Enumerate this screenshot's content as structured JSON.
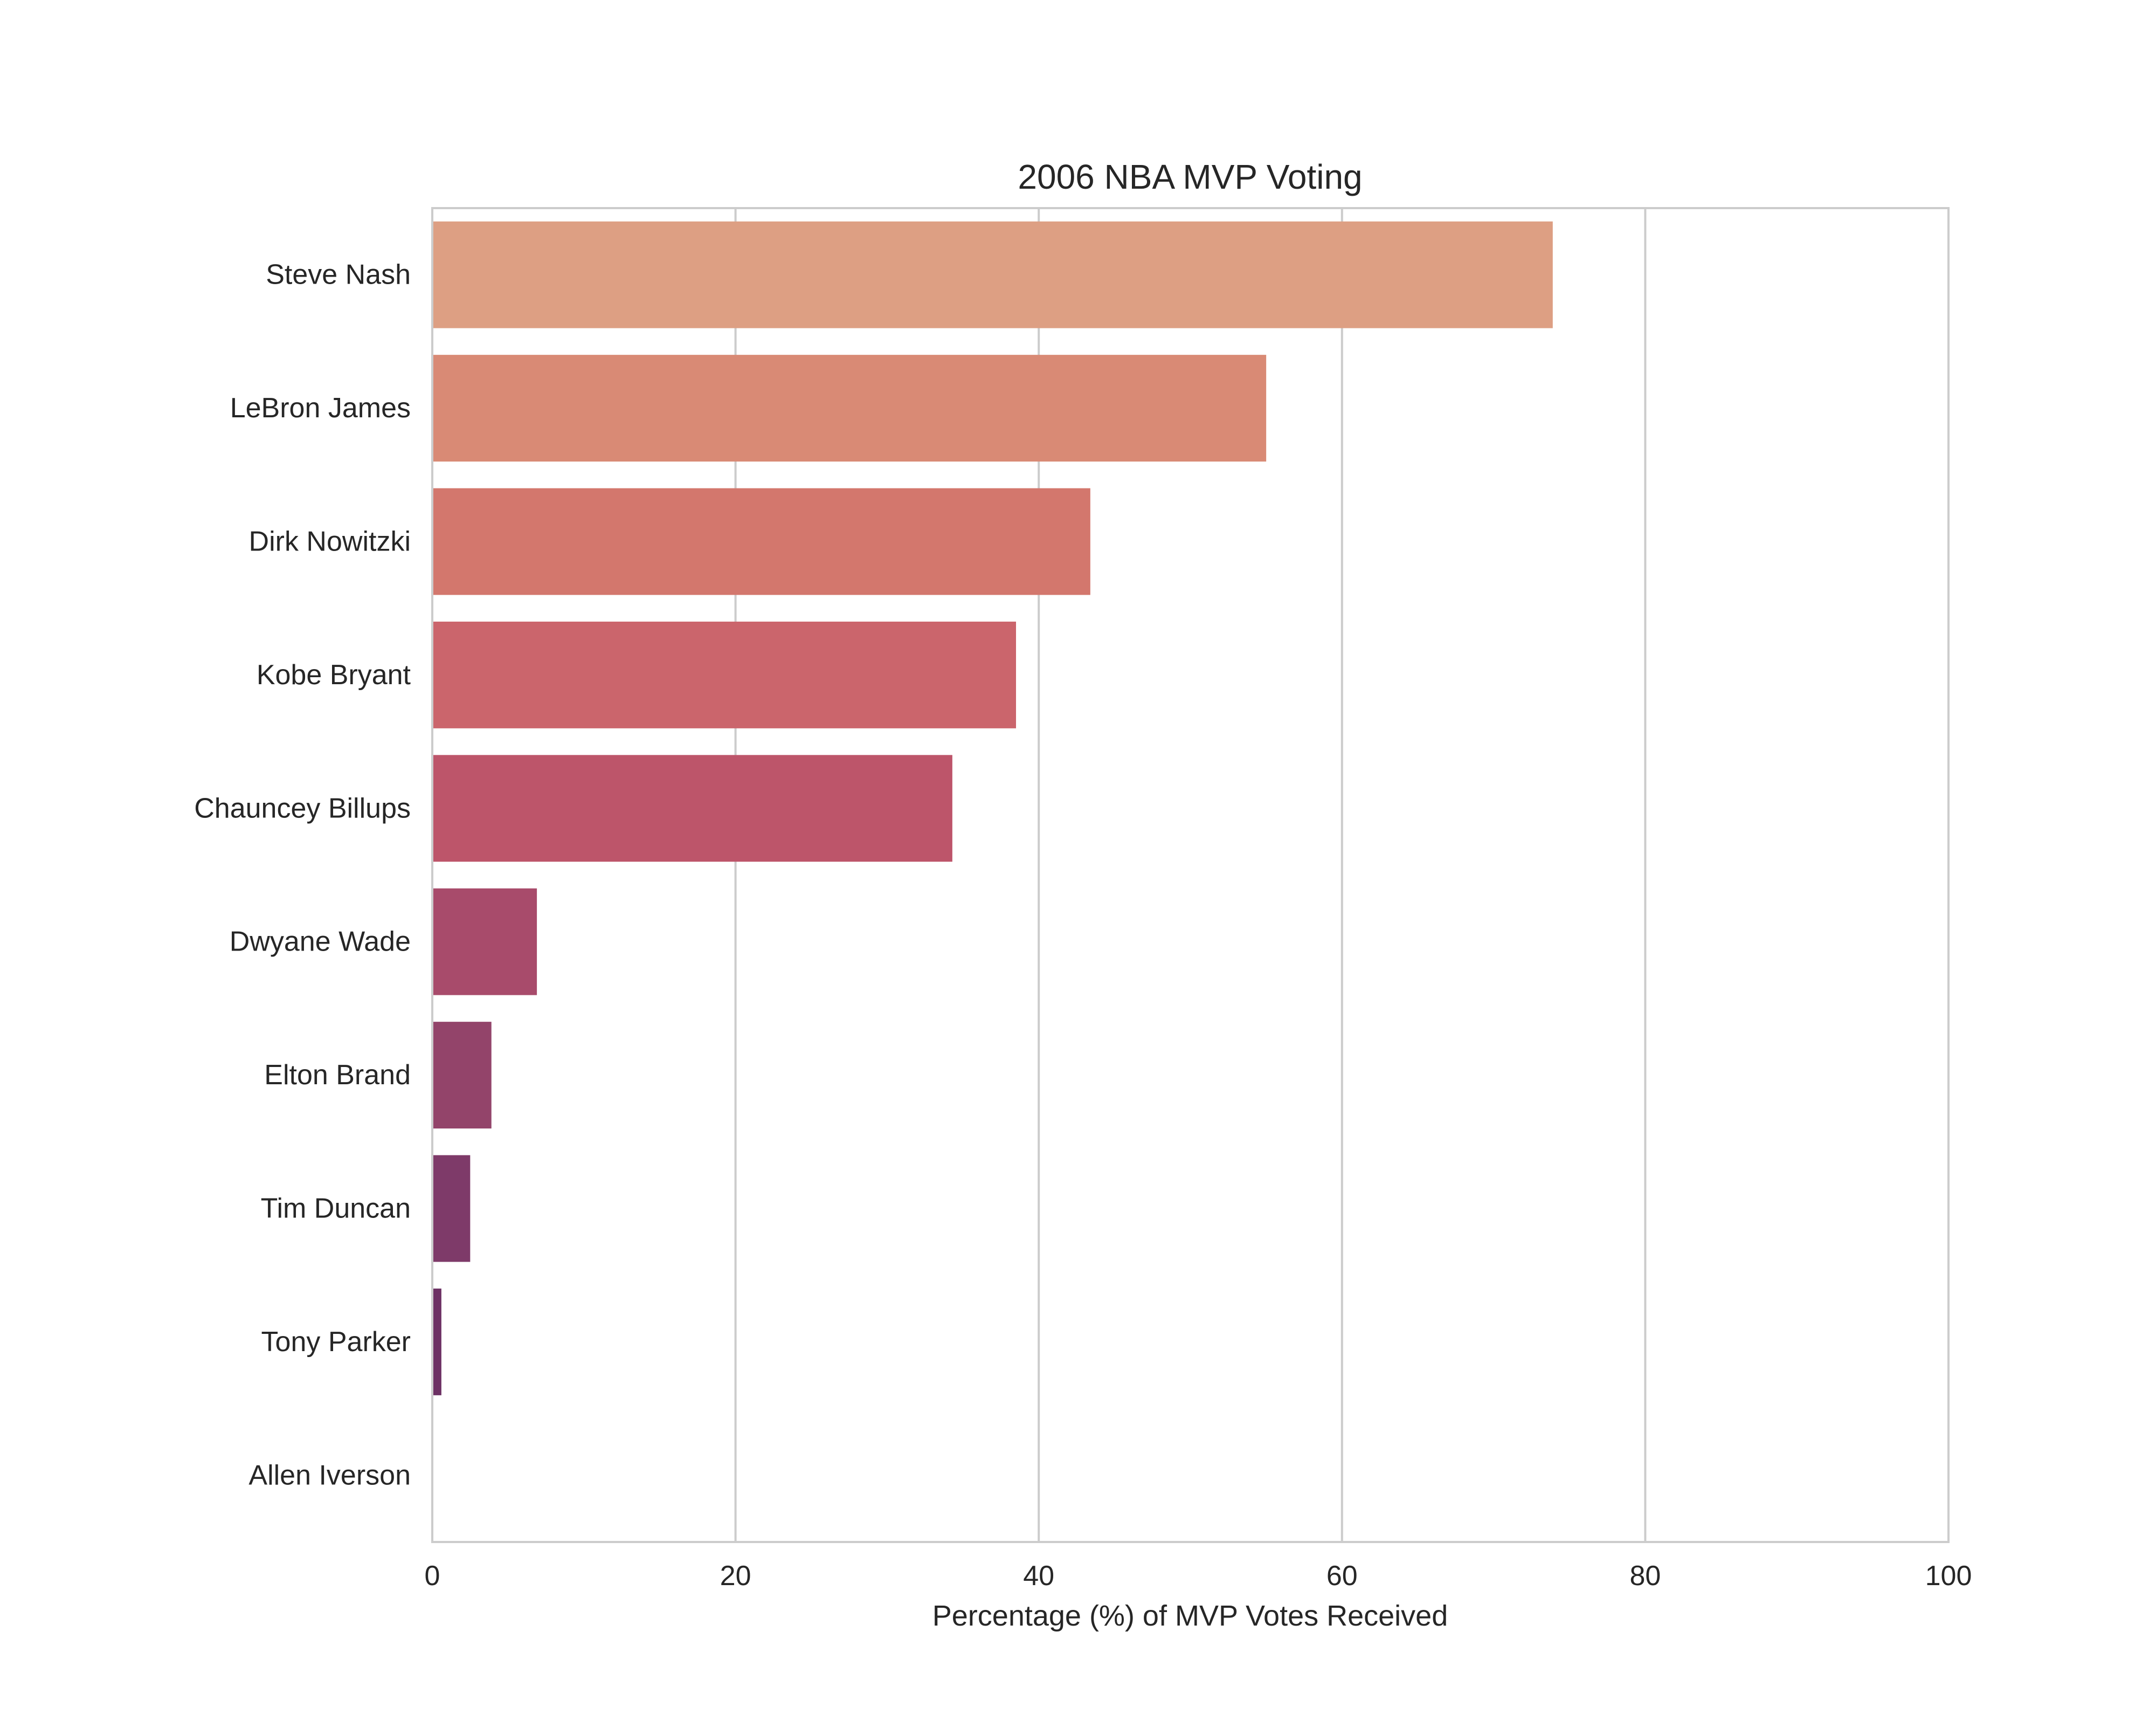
{
  "chart_data": {
    "type": "bar",
    "orientation": "horizontal",
    "title": "2006 NBA MVP Voting",
    "xlabel": "Percentage (%) of MVP Votes Received",
    "ylabel": "",
    "xlim": [
      0,
      100
    ],
    "xticks": [
      0,
      20,
      40,
      60,
      80,
      100
    ],
    "grid": "vertical",
    "categories": [
      "Steve Nash",
      "LeBron James",
      "Dirk Nowitzki",
      "Kobe Bryant",
      "Chauncey Billups",
      "Dwyane Wade",
      "Elton Brand",
      "Tim Duncan",
      "Tony Parker",
      "Allen Iverson"
    ],
    "values": [
      73.9,
      55.0,
      43.4,
      38.5,
      34.3,
      6.9,
      3.9,
      2.5,
      0.6,
      0.0
    ],
    "colors": [
      "#dd9f83",
      "#d98a75",
      "#d3776d",
      "#cb656c",
      "#bd556a",
      "#a84b6b",
      "#93446a",
      "#7e3a69",
      "#6d3164",
      "#5c2a5e"
    ]
  }
}
